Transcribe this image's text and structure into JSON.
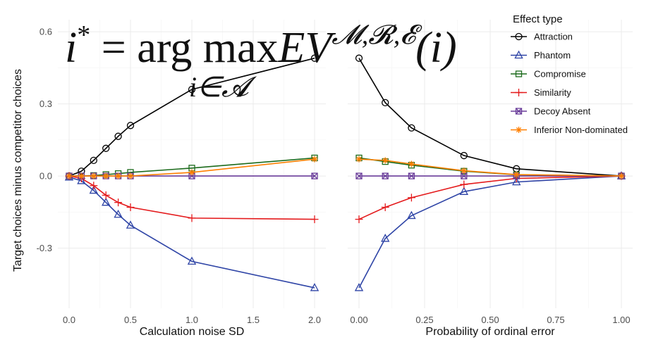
{
  "formula": {
    "lhs": "i",
    "lhs_sup": "*",
    "rhs_pre": " = arg max",
    "rhs_ev": "EV",
    "rhs_sup": "𝓜,𝓡,𝓔",
    "rhs_arg": "(i)",
    "sub": "i∈𝓐"
  },
  "chart_data": {
    "type": "line",
    "ylabel": "Target choices minus competitor choices",
    "yticks": [
      "-0.3",
      "0.0",
      "0.3",
      "0.6"
    ],
    "ylim": [
      -0.55,
      0.65
    ],
    "legend": {
      "title": "Effect type",
      "placement": "right",
      "entries": [
        "Attraction",
        "Phantom",
        "Compromise",
        "Similarity",
        "Decoy Absent",
        "Inferior Non-dominated"
      ]
    },
    "series_styles": [
      {
        "name": "Attraction",
        "color": "#000000",
        "marker": "circle"
      },
      {
        "name": "Phantom",
        "color": "#2e44a6",
        "marker": "triangle"
      },
      {
        "name": "Compromise",
        "color": "#1c6b1c",
        "marker": "square"
      },
      {
        "name": "Similarity",
        "color": "#e41a1c",
        "marker": "plus"
      },
      {
        "name": "Decoy Absent",
        "color": "#6a3d9a",
        "marker": "squarecross"
      },
      {
        "name": "Inferior Non-dominated",
        "color": "#ff7f00",
        "marker": "asterisk"
      }
    ],
    "panels": [
      {
        "xlabel": "Calculation noise SD",
        "xlim": [
          0,
          2
        ],
        "xticks": [
          {
            "v": 0,
            "label": "0.0"
          },
          {
            "v": 0.5,
            "label": "0.5"
          },
          {
            "v": 1,
            "label": "1.0"
          },
          {
            "v": 1.5,
            "label": "1.5"
          },
          {
            "v": 2,
            "label": "2.0"
          }
        ],
        "x": [
          0,
          0.1,
          0.2,
          0.3,
          0.4,
          0.5,
          1.0,
          2.0
        ],
        "series": [
          {
            "name": "Attraction",
            "values": [
              0.0,
              0.02,
              0.065,
              0.115,
              0.165,
              0.21,
              0.36,
              0.49
            ]
          },
          {
            "name": "Phantom",
            "values": [
              -0.005,
              -0.02,
              -0.06,
              -0.11,
              -0.16,
              -0.205,
              -0.355,
              -0.465
            ]
          },
          {
            "name": "Compromise",
            "values": [
              0.0,
              0.0,
              0.002,
              0.006,
              0.01,
              0.015,
              0.033,
              0.075
            ]
          },
          {
            "name": "Similarity",
            "values": [
              0.0,
              -0.01,
              -0.04,
              -0.08,
              -0.11,
              -0.13,
              -0.175,
              -0.18
            ]
          },
          {
            "name": "Decoy Absent",
            "values": [
              0.0,
              0.0,
              0.0,
              0.0,
              0.0,
              0.0,
              0.0,
              0.0
            ]
          },
          {
            "name": "Inferior Non-dominated",
            "values": [
              0.0,
              0.0,
              0.0,
              0.0,
              0.0,
              0.0,
              0.015,
              0.07
            ]
          }
        ]
      },
      {
        "xlabel": "Probability of ordinal error",
        "xlim": [
          0,
          1
        ],
        "xticks": [
          {
            "v": 0,
            "label": "0.00"
          },
          {
            "v": 0.25,
            "label": "0.25"
          },
          {
            "v": 0.5,
            "label": "0.50"
          },
          {
            "v": 0.75,
            "label": "0.75"
          },
          {
            "v": 1,
            "label": "1.00"
          }
        ],
        "x": [
          0,
          0.1,
          0.2,
          0.4,
          0.6,
          1.0
        ],
        "series": [
          {
            "name": "Attraction",
            "values": [
              0.49,
              0.305,
              0.2,
              0.085,
              0.03,
              0.0
            ]
          },
          {
            "name": "Phantom",
            "values": [
              -0.465,
              -0.26,
              -0.165,
              -0.065,
              -0.025,
              0.0
            ]
          },
          {
            "name": "Compromise",
            "values": [
              0.075,
              0.06,
              0.045,
              0.02,
              0.005,
              0.0
            ]
          },
          {
            "name": "Similarity",
            "values": [
              -0.18,
              -0.13,
              -0.09,
              -0.035,
              -0.01,
              0.0
            ]
          },
          {
            "name": "Decoy Absent",
            "values": [
              0.0,
              0.0,
              0.0,
              0.0,
              0.0,
              0.0
            ]
          },
          {
            "name": "Inferior Non-dominated",
            "values": [
              0.07,
              0.065,
              0.05,
              0.022,
              0.006,
              0.0
            ]
          }
        ]
      }
    ]
  }
}
